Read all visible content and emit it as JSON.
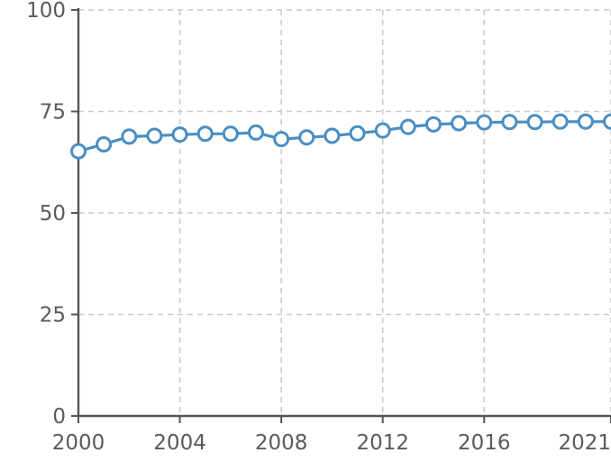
{
  "chart_data": {
    "type": "line",
    "title": "",
    "xlabel": "",
    "ylabel": "",
    "xlim": [
      2000,
      2021
    ],
    "ylim": [
      0,
      100
    ],
    "grid": true,
    "x_ticks": [
      "2000",
      "2004",
      "2008",
      "2012",
      "2016",
      "2021"
    ],
    "y_ticks": [
      "0",
      "25",
      "50",
      "75",
      "100"
    ],
    "series": [
      {
        "color": "#4a8ec2",
        "x": [
          2000,
          2001,
          2002,
          2003,
          2004,
          2005,
          2006,
          2007,
          2008,
          2009,
          2010,
          2011,
          2012,
          2013,
          2014,
          2015,
          2016,
          2017,
          2018,
          2019,
          2020,
          2021
        ],
        "y": [
          65.2,
          66.9,
          68.8,
          69.0,
          69.3,
          69.5,
          69.5,
          69.8,
          68.2,
          68.6,
          69.0,
          69.6,
          70.3,
          71.2,
          71.8,
          72.1,
          72.3,
          72.4,
          72.4,
          72.5,
          72.5,
          72.5
        ]
      }
    ]
  }
}
